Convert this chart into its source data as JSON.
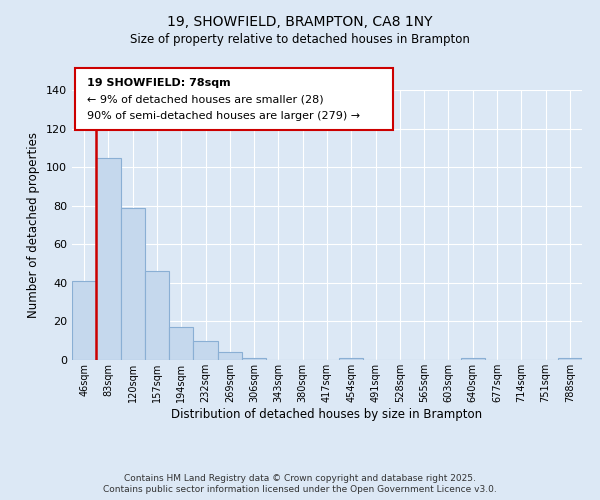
{
  "title": "19, SHOWFIELD, BRAMPTON, CA8 1NY",
  "subtitle": "Size of property relative to detached houses in Brampton",
  "xlabel": "Distribution of detached houses by size in Brampton",
  "ylabel": "Number of detached properties",
  "categories": [
    "46sqm",
    "83sqm",
    "120sqm",
    "157sqm",
    "194sqm",
    "232sqm",
    "269sqm",
    "306sqm",
    "343sqm",
    "380sqm",
    "417sqm",
    "454sqm",
    "491sqm",
    "528sqm",
    "565sqm",
    "603sqm",
    "640sqm",
    "677sqm",
    "714sqm",
    "751sqm",
    "788sqm"
  ],
  "values": [
    41,
    105,
    79,
    46,
    17,
    10,
    4,
    1,
    0,
    0,
    0,
    1,
    0,
    0,
    0,
    0,
    1,
    0,
    0,
    0,
    1
  ],
  "bar_color": "#c5d8ed",
  "bar_edge_color": "#8aafd4",
  "highlight_line_color": "#cc0000",
  "ylim": [
    0,
    140
  ],
  "yticks": [
    0,
    20,
    40,
    60,
    80,
    100,
    120,
    140
  ],
  "annotation_title": "19 SHOWFIELD: 78sqm",
  "annotation_line1": "← 9% of detached houses are smaller (28)",
  "annotation_line2": "90% of semi-detached houses are larger (279) →",
  "annotation_box_color": "#ffffff",
  "annotation_box_edge_color": "#cc0000",
  "footer_line1": "Contains HM Land Registry data © Crown copyright and database right 2025.",
  "footer_line2": "Contains public sector information licensed under the Open Government Licence v3.0.",
  "background_color": "#dce8f5",
  "plot_background_color": "#dce8f5",
  "grid_color": "#ffffff"
}
